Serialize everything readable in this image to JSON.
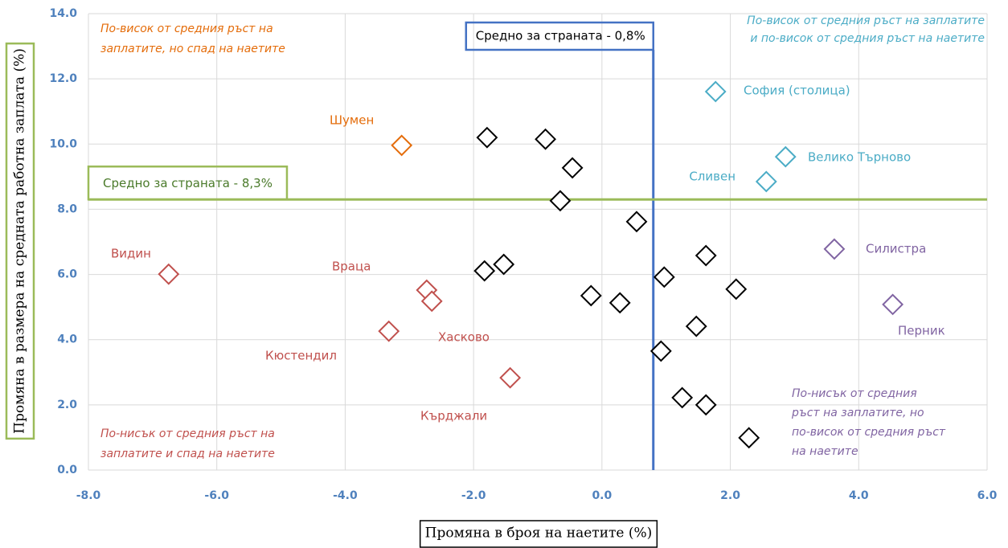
{
  "chart_data": {
    "type": "scatter",
    "xlabel": "Промяна в броя на наетите (%)",
    "ylabel": "Промяна в размера на средната работна заплата (%)",
    "xlim": [
      -8,
      6
    ],
    "ylim": [
      0,
      14
    ],
    "xticks": [
      {
        "value": -8,
        "label": "-8.0"
      },
      {
        "value": -6,
        "label": "-6.0"
      },
      {
        "value": -4,
        "label": "-4.0"
      },
      {
        "value": -2,
        "label": "-2.0"
      },
      {
        "value": 0,
        "label": "0.0"
      },
      {
        "value": 2,
        "label": "2.0"
      },
      {
        "value": 4,
        "label": "4.0"
      },
      {
        "value": 6,
        "label": "6.0"
      }
    ],
    "yticks": [
      {
        "value": 0,
        "label": "0.0"
      },
      {
        "value": 2,
        "label": "2.0"
      },
      {
        "value": 4,
        "label": "4.0"
      },
      {
        "value": 6,
        "label": "6.0"
      },
      {
        "value": 8,
        "label": "8.0"
      },
      {
        "value": 10,
        "label": "10.0"
      },
      {
        "value": 12,
        "label": "12.0"
      },
      {
        "value": 14,
        "label": "14.0"
      }
    ],
    "grid": true,
    "series": [
      {
        "color": "#000000",
        "x": [
          -1.79,
          -0.88,
          -0.46,
          -0.65,
          0.54,
          1.62,
          0.97,
          2.09,
          -1.83,
          -1.53,
          -0.17,
          0.28,
          1.47,
          0.92,
          1.25,
          1.62,
          2.29
        ],
        "y": [
          10.2,
          10.15,
          9.27,
          8.26,
          7.62,
          6.58,
          5.92,
          5.55,
          6.11,
          6.31,
          5.35,
          5.13,
          4.41,
          3.65,
          2.22,
          2.0,
          0.99
        ]
      },
      {
        "color": "#4bacc6",
        "x": [
          1.77,
          2.86,
          2.56
        ],
        "y": [
          11.61,
          9.61,
          8.85
        ],
        "labels": [
          "София (столица)",
          "Велико Търново",
          "Сливен"
        ]
      },
      {
        "color": "#e46c0a",
        "x": [
          -3.12
        ],
        "y": [
          9.96
        ],
        "labels": [
          "Шумен"
        ]
      },
      {
        "color": "#c0504d",
        "x": [
          -6.75,
          -2.73,
          -2.65,
          -3.32,
          -1.43
        ],
        "y": [
          6.01,
          5.52,
          5.18,
          4.26,
          2.83
        ],
        "labels": [
          "Видин",
          "Враца",
          "Хасково",
          "Кюстендил",
          "Кърджали"
        ]
      },
      {
        "color": "#8064a2",
        "x": [
          3.62,
          4.53
        ],
        "y": [
          6.78,
          5.08
        ],
        "labels": [
          "Силистра",
          "Перник"
        ]
      }
    ],
    "reference_lines": [
      {
        "axis": "x",
        "value": 0.8,
        "label": "Средно за страната - 0,8%",
        "color": "#4472c4"
      },
      {
        "axis": "y",
        "value": 8.3,
        "label": "Средно за страната - 8,3%",
        "color": "#9bbb59"
      }
    ],
    "annotations": [
      {
        "corner": "top-left",
        "color": "#e46c0a",
        "lines": [
          "По-висок от средния ръст на",
          "заплатите, но спад на наетите"
        ]
      },
      {
        "corner": "top-right",
        "color": "#4bacc6",
        "lines": [
          "По-висок от средния ръст на заплатите",
          "и по-висок от средния ръст на наетите"
        ]
      },
      {
        "corner": "bottom-left",
        "color": "#c0504d",
        "lines": [
          "По-нисък от средния ръст на",
          "заплатите и спад на наетите"
        ]
      },
      {
        "corner": "bottom-right",
        "color": "#8064a2",
        "lines": [
          "По-нисък от средния",
          "ръст на заплатите,  но",
          "по-висок от средния ръст",
          "на наетите"
        ]
      }
    ]
  }
}
